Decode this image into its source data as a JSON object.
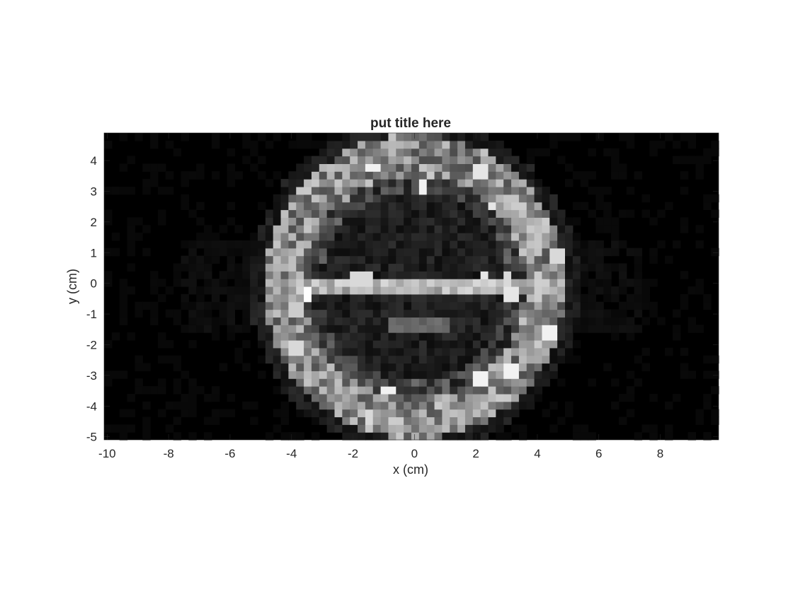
{
  "chart_data": {
    "type": "heatmap",
    "title": "put title here",
    "xlabel": "x (cm)",
    "ylabel": "y (cm)",
    "xlim": [
      -10.1,
      9.9
    ],
    "ylim": [
      -5.1,
      4.9
    ],
    "x_ticks": [
      -10,
      -8,
      -6,
      -4,
      -2,
      0,
      2,
      4,
      6,
      8
    ],
    "y_ticks": [
      -5,
      -4,
      -3,
      -2,
      -1,
      0,
      1,
      2,
      3,
      4
    ],
    "colormap": "gray",
    "grid": false,
    "legend": "none",
    "cell_size_cm": 0.25,
    "ring": {
      "center": [
        0.0,
        -0.1
      ],
      "outer_radius_x": 4.9,
      "outer_radius_y": 4.95,
      "inner_radius_x": 3.6,
      "inner_radius_y": 3.65
    },
    "hot_spots": [
      {
        "x": -3.5,
        "y": -0.3,
        "value": 1.0
      },
      {
        "x": -1.3,
        "y": 3.8,
        "value": 0.95
      },
      {
        "x": 0.3,
        "y": 3.1,
        "value": 0.95
      },
      {
        "x": 2.1,
        "y": 3.7,
        "value": 0.9
      },
      {
        "x": 2.5,
        "y": 2.5,
        "value": 0.9
      },
      {
        "x": 2.3,
        "y": 0.3,
        "value": 0.9
      },
      {
        "x": 3.0,
        "y": 0.2,
        "value": 0.85
      },
      {
        "x": 3.2,
        "y": -0.3,
        "value": 0.9
      },
      {
        "x": 4.4,
        "y": -1.6,
        "value": 0.95
      },
      {
        "x": 4.6,
        "y": 0.9,
        "value": 0.85
      },
      {
        "x": 2.2,
        "y": -3.1,
        "value": 0.95
      },
      {
        "x": 3.1,
        "y": -2.9,
        "value": 0.95
      },
      {
        "x": -0.9,
        "y": -3.5,
        "value": 0.95
      },
      {
        "x": -1.5,
        "y": -4.3,
        "value": 0.85
      },
      {
        "x": -3.9,
        "y": -2.1,
        "value": 0.85
      },
      {
        "x": -4.3,
        "y": 1.8,
        "value": 0.7
      },
      {
        "x": -3.8,
        "y": -0.9,
        "value": 0.8
      },
      {
        "x": -1.9,
        "y": 0.1,
        "value": 0.85
      },
      {
        "x": -1.5,
        "y": 0.1,
        "value": 0.85
      }
    ],
    "bright_band": {
      "y": 0.0,
      "x_range": [
        -3.8,
        4.6
      ],
      "value": 0.55
    },
    "dim_band": {
      "y": -1.3,
      "x_range": [
        -0.8,
        1.2
      ],
      "value": 0.35
    }
  }
}
